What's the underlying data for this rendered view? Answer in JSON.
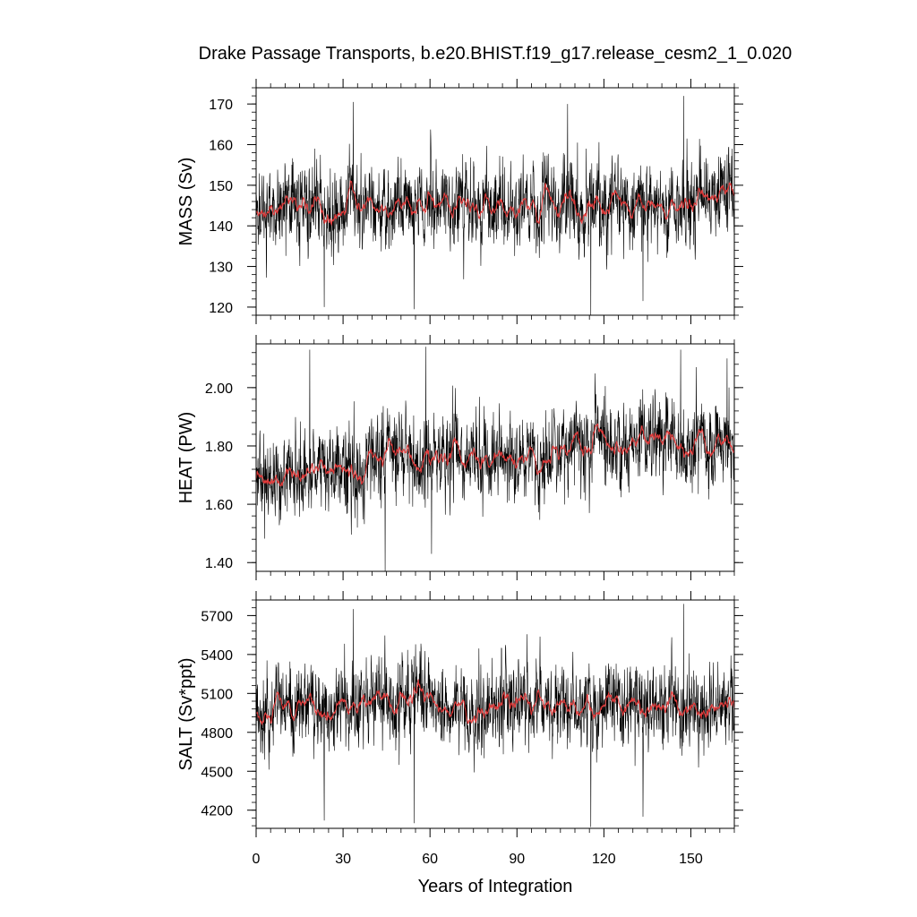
{
  "chart_data": {
    "type": "line",
    "title": "Drake Passage Transports, b.e20.BHIST.f19_g17.release_cesm2_1_0.020",
    "xlabel": "Years of Integration",
    "xlim": [
      0,
      165
    ],
    "xticks": [
      "0",
      "30",
      "60",
      "90",
      "120",
      "150"
    ],
    "colors": {
      "raw": "#000000",
      "smoothed": "#e33b3b"
    },
    "grid": false,
    "panels": [
      {
        "ylabel": "MASS (Sv)",
        "ylim": [
          118,
          174
        ],
        "yticks": [
          {
            "v": 120,
            "label": "120"
          },
          {
            "v": 130,
            "label": "130"
          },
          {
            "v": 140,
            "label": "140"
          },
          {
            "v": 150,
            "label": "150"
          },
          {
            "v": 160,
            "label": "160"
          },
          {
            "v": 170,
            "label": "170"
          }
        ],
        "mean": 145.5,
        "sd": 6.0,
        "trend_start": 144.5,
        "trend_end": 146.5,
        "spikes": [
          {
            "x": 23.5,
            "y": 120
          },
          {
            "x": 54.5,
            "y": 119.5
          },
          {
            "x": 115.5,
            "y": 118
          },
          {
            "x": 133.5,
            "y": 121.5
          },
          {
            "x": 147.5,
            "y": 172
          },
          {
            "x": 33.5,
            "y": 170.5
          },
          {
            "x": 107.5,
            "y": 170
          }
        ]
      },
      {
        "ylabel": "HEAT (PW)",
        "ylim": [
          1.37,
          2.15
        ],
        "yticks": [
          {
            "v": 1.4,
            "label": "1.40"
          },
          {
            "v": 1.6,
            "label": "1.60"
          },
          {
            "v": 1.8,
            "label": "1.80"
          },
          {
            "v": 2.0,
            "label": "2.00"
          }
        ],
        "mean": 1.74,
        "sd": 0.085,
        "trend_start": 1.69,
        "trend_end": 1.83,
        "spikes": [
          {
            "x": 18.5,
            "y": 2.13
          },
          {
            "x": 58.5,
            "y": 2.14
          },
          {
            "x": 44.5,
            "y": 1.37
          },
          {
            "x": 60.5,
            "y": 1.43
          },
          {
            "x": 146.5,
            "y": 2.13
          },
          {
            "x": 162.5,
            "y": 2.1
          }
        ]
      },
      {
        "ylabel": "SALT (Sv*ppt)",
        "ylim": [
          4060,
          5820
        ],
        "yticks": [
          {
            "v": 4200,
            "label": "4200"
          },
          {
            "v": 4500,
            "label": "4500"
          },
          {
            "v": 4800,
            "label": "4800"
          },
          {
            "v": 5100,
            "label": "5100"
          },
          {
            "v": 5400,
            "label": "5400"
          },
          {
            "v": 5700,
            "label": "5700"
          }
        ],
        "mean": 5000,
        "sd": 190,
        "trend_start": 4980,
        "trend_end": 5030,
        "spikes": [
          {
            "x": 23.5,
            "y": 4120
          },
          {
            "x": 54.5,
            "y": 4100
          },
          {
            "x": 115.5,
            "y": 4070
          },
          {
            "x": 133.5,
            "y": 4150
          },
          {
            "x": 147.5,
            "y": 5790
          },
          {
            "x": 33.5,
            "y": 5750
          }
        ]
      }
    ]
  }
}
